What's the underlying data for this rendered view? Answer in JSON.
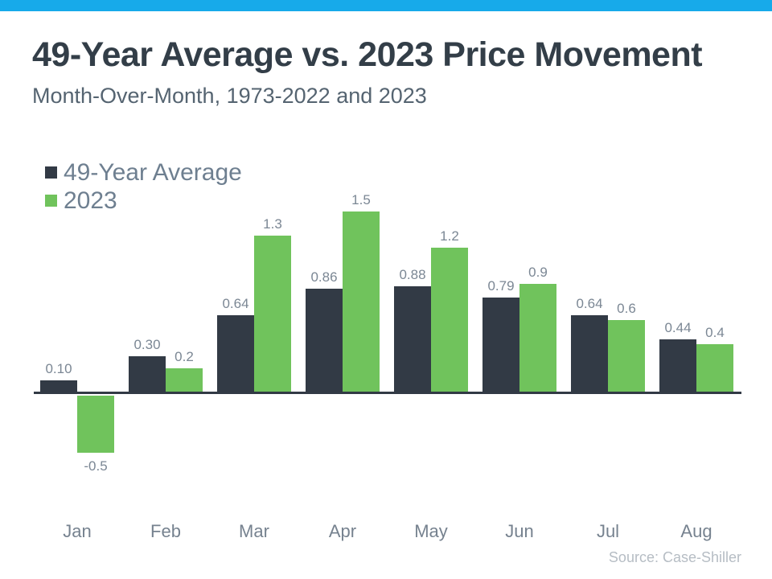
{
  "colors": {
    "top_bar": "#17aaea",
    "title_text": "#333e48",
    "subtitle_text": "#556471",
    "legend_text": "#6e7f90",
    "value_label_text": "#7b8794",
    "month_label_text": "#76828f",
    "source_text": "#b6bdc4",
    "axis_line": "#323a45"
  },
  "header": {
    "title": "49-Year Average vs. 2023 Price Movement",
    "subtitle": "Month-Over-Month, 1973-2022 and 2023"
  },
  "footer": {
    "source": "Source: Case-Shiller"
  },
  "chart_data": {
    "type": "bar",
    "title": "49-Year Average vs. 2023 Price Movement",
    "subtitle": "Month-Over-Month, 1973-2022 and 2023",
    "categories": [
      "Jan",
      "Feb",
      "Mar",
      "Apr",
      "May",
      "Jun",
      "Jul",
      "Aug"
    ],
    "series": [
      {
        "name": "49-Year Average",
        "color": "#323a45",
        "values": [
          0.1,
          0.3,
          0.64,
          0.86,
          0.88,
          0.79,
          0.64,
          0.44
        ],
        "labels": [
          "0.10",
          "0.30",
          "0.64",
          "0.86",
          "0.88",
          "0.79",
          "0.64",
          "0.44"
        ]
      },
      {
        "name": "2023",
        "color": "#70c35c",
        "values": [
          -0.5,
          0.2,
          1.3,
          1.5,
          1.2,
          0.9,
          0.6,
          0.4
        ],
        "labels": [
          "-0.5",
          "0.2",
          "1.3",
          "1.5",
          "1.2",
          "0.9",
          "0.6",
          "0.4"
        ]
      }
    ],
    "legend_position": "top-left",
    "grid": false,
    "value_axis_visible": false,
    "value_labels_visible": true,
    "ylim": [
      -0.75,
      1.65
    ]
  }
}
